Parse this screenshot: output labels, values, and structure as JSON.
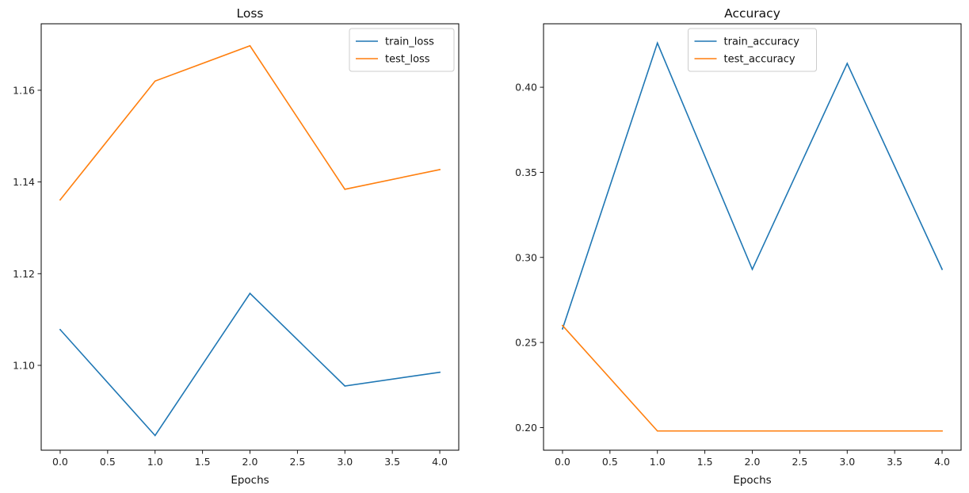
{
  "chart_data": [
    {
      "type": "line",
      "title": "Loss",
      "xlabel": "Epochs",
      "ylabel": "",
      "x": [
        0,
        1,
        2,
        3,
        4
      ],
      "xlim": [
        -0.2,
        4.2
      ],
      "ylim": [
        1.0815,
        1.1745
      ],
      "xticks": [
        0.0,
        0.5,
        1.0,
        1.5,
        2.0,
        2.5,
        3.0,
        3.5,
        4.0
      ],
      "xtick_labels": [
        "0.0",
        "0.5",
        "1.0",
        "1.5",
        "2.0",
        "2.5",
        "3.0",
        "3.5",
        "4.0"
      ],
      "yticks": [
        1.1,
        1.12,
        1.14,
        1.16
      ],
      "ytick_labels": [
        "1.10",
        "1.12",
        "1.14",
        "1.16"
      ],
      "grid": false,
      "legend_position": "upper right",
      "series": [
        {
          "name": "train_loss",
          "color": "#1f77b4",
          "values": [
            1.1078,
            1.0847,
            1.1157,
            1.0955,
            1.0985
          ]
        },
        {
          "name": "test_loss",
          "color": "#ff7f0e",
          "values": [
            1.1361,
            1.162,
            1.1697,
            1.1384,
            1.1427
          ]
        }
      ]
    },
    {
      "type": "line",
      "title": "Accuracy",
      "xlabel": "Epochs",
      "ylabel": "",
      "x": [
        0,
        1,
        2,
        3,
        4
      ],
      "xlim": [
        -0.2,
        4.2
      ],
      "ylim": [
        0.1867,
        0.4373
      ],
      "xticks": [
        0.0,
        0.5,
        1.0,
        1.5,
        2.0,
        2.5,
        3.0,
        3.5,
        4.0
      ],
      "xtick_labels": [
        "0.0",
        "0.5",
        "1.0",
        "1.5",
        "2.0",
        "2.5",
        "3.0",
        "3.5",
        "4.0"
      ],
      "yticks": [
        0.2,
        0.25,
        0.3,
        0.35,
        0.4
      ],
      "ytick_labels": [
        "0.20",
        "0.25",
        "0.30",
        "0.35",
        "0.40"
      ],
      "grid": false,
      "legend_position": "upper center",
      "series": [
        {
          "name": "train_accuracy",
          "color": "#1f77b4",
          "values": [
            0.258,
            0.426,
            0.293,
            0.414,
            0.293
          ]
        },
        {
          "name": "test_accuracy",
          "color": "#ff7f0e",
          "values": [
            0.26,
            0.198,
            0.198,
            0.198,
            0.198
          ]
        }
      ]
    }
  ]
}
